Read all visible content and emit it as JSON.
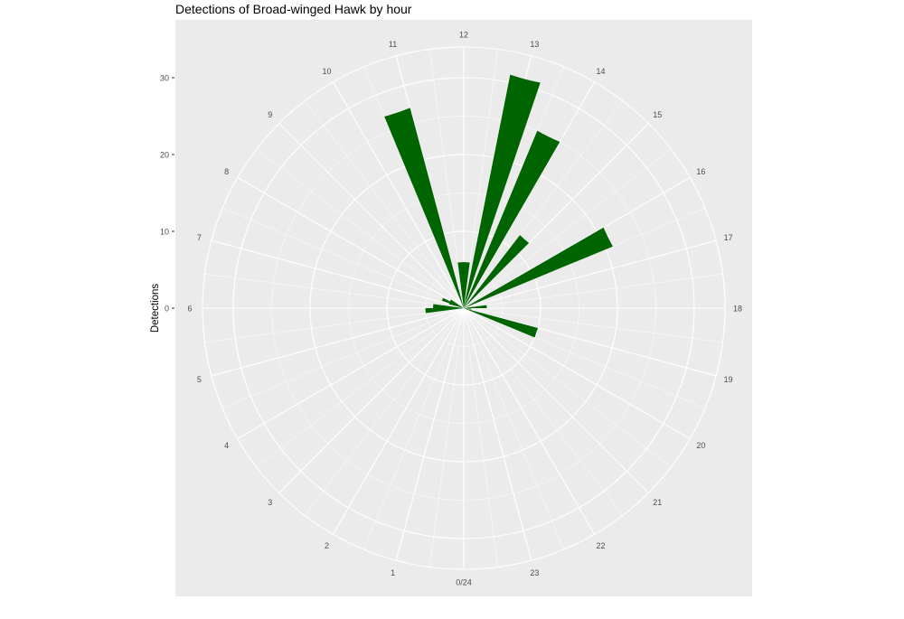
{
  "chart_data": {
    "type": "bar",
    "coord": "polar",
    "title": "Detections of Broad-winged Hawk by hour",
    "xlabel": "",
    "ylabel": "Detections",
    "categories": [
      "0/24",
      "1",
      "2",
      "3",
      "4",
      "5",
      "6",
      "7",
      "8",
      "9",
      "10",
      "11",
      "12",
      "13",
      "14",
      "15",
      "16",
      "17",
      "18",
      "19",
      "20",
      "21",
      "22",
      "23"
    ],
    "values": [
      0,
      0,
      0,
      0,
      0,
      0,
      0,
      0,
      0,
      0,
      0,
      0,
      0,
      0,
      0,
      0,
      0,
      0,
      0,
      0,
      0,
      0,
      0,
      0
    ],
    "bar_values": [
      {
        "hour": 6.5,
        "value": 0
      },
      {
        "hour": 5.75,
        "value": 5
      },
      {
        "hour": 6.25,
        "value": 4
      },
      {
        "hour": 7.25,
        "value": 2
      },
      {
        "hour": 7.5,
        "value": 3
      },
      {
        "hour": 8.0,
        "value": 2
      },
      {
        "hour": 10.75,
        "value": 27
      },
      {
        "hour": 11.75,
        "value": 6
      },
      {
        "hour": 12.25,
        "value": 6
      },
      {
        "hour": 13.0,
        "value": 31
      },
      {
        "hour": 13.75,
        "value": 25
      },
      {
        "hour": 14.75,
        "value": 12
      },
      {
        "hour": 16.25,
        "value": 21
      },
      {
        "hour": 17.75,
        "value": 3
      },
      {
        "hour": 18.5,
        "value": 1
      },
      {
        "hour": 19.25,
        "value": 10
      }
    ],
    "y_ticks": [
      0,
      10,
      20,
      30
    ],
    "ylim": [
      0,
      34
    ],
    "bar_color": "#006400",
    "panel_color": "#EBEBEB",
    "grid": true,
    "legend": "none"
  }
}
